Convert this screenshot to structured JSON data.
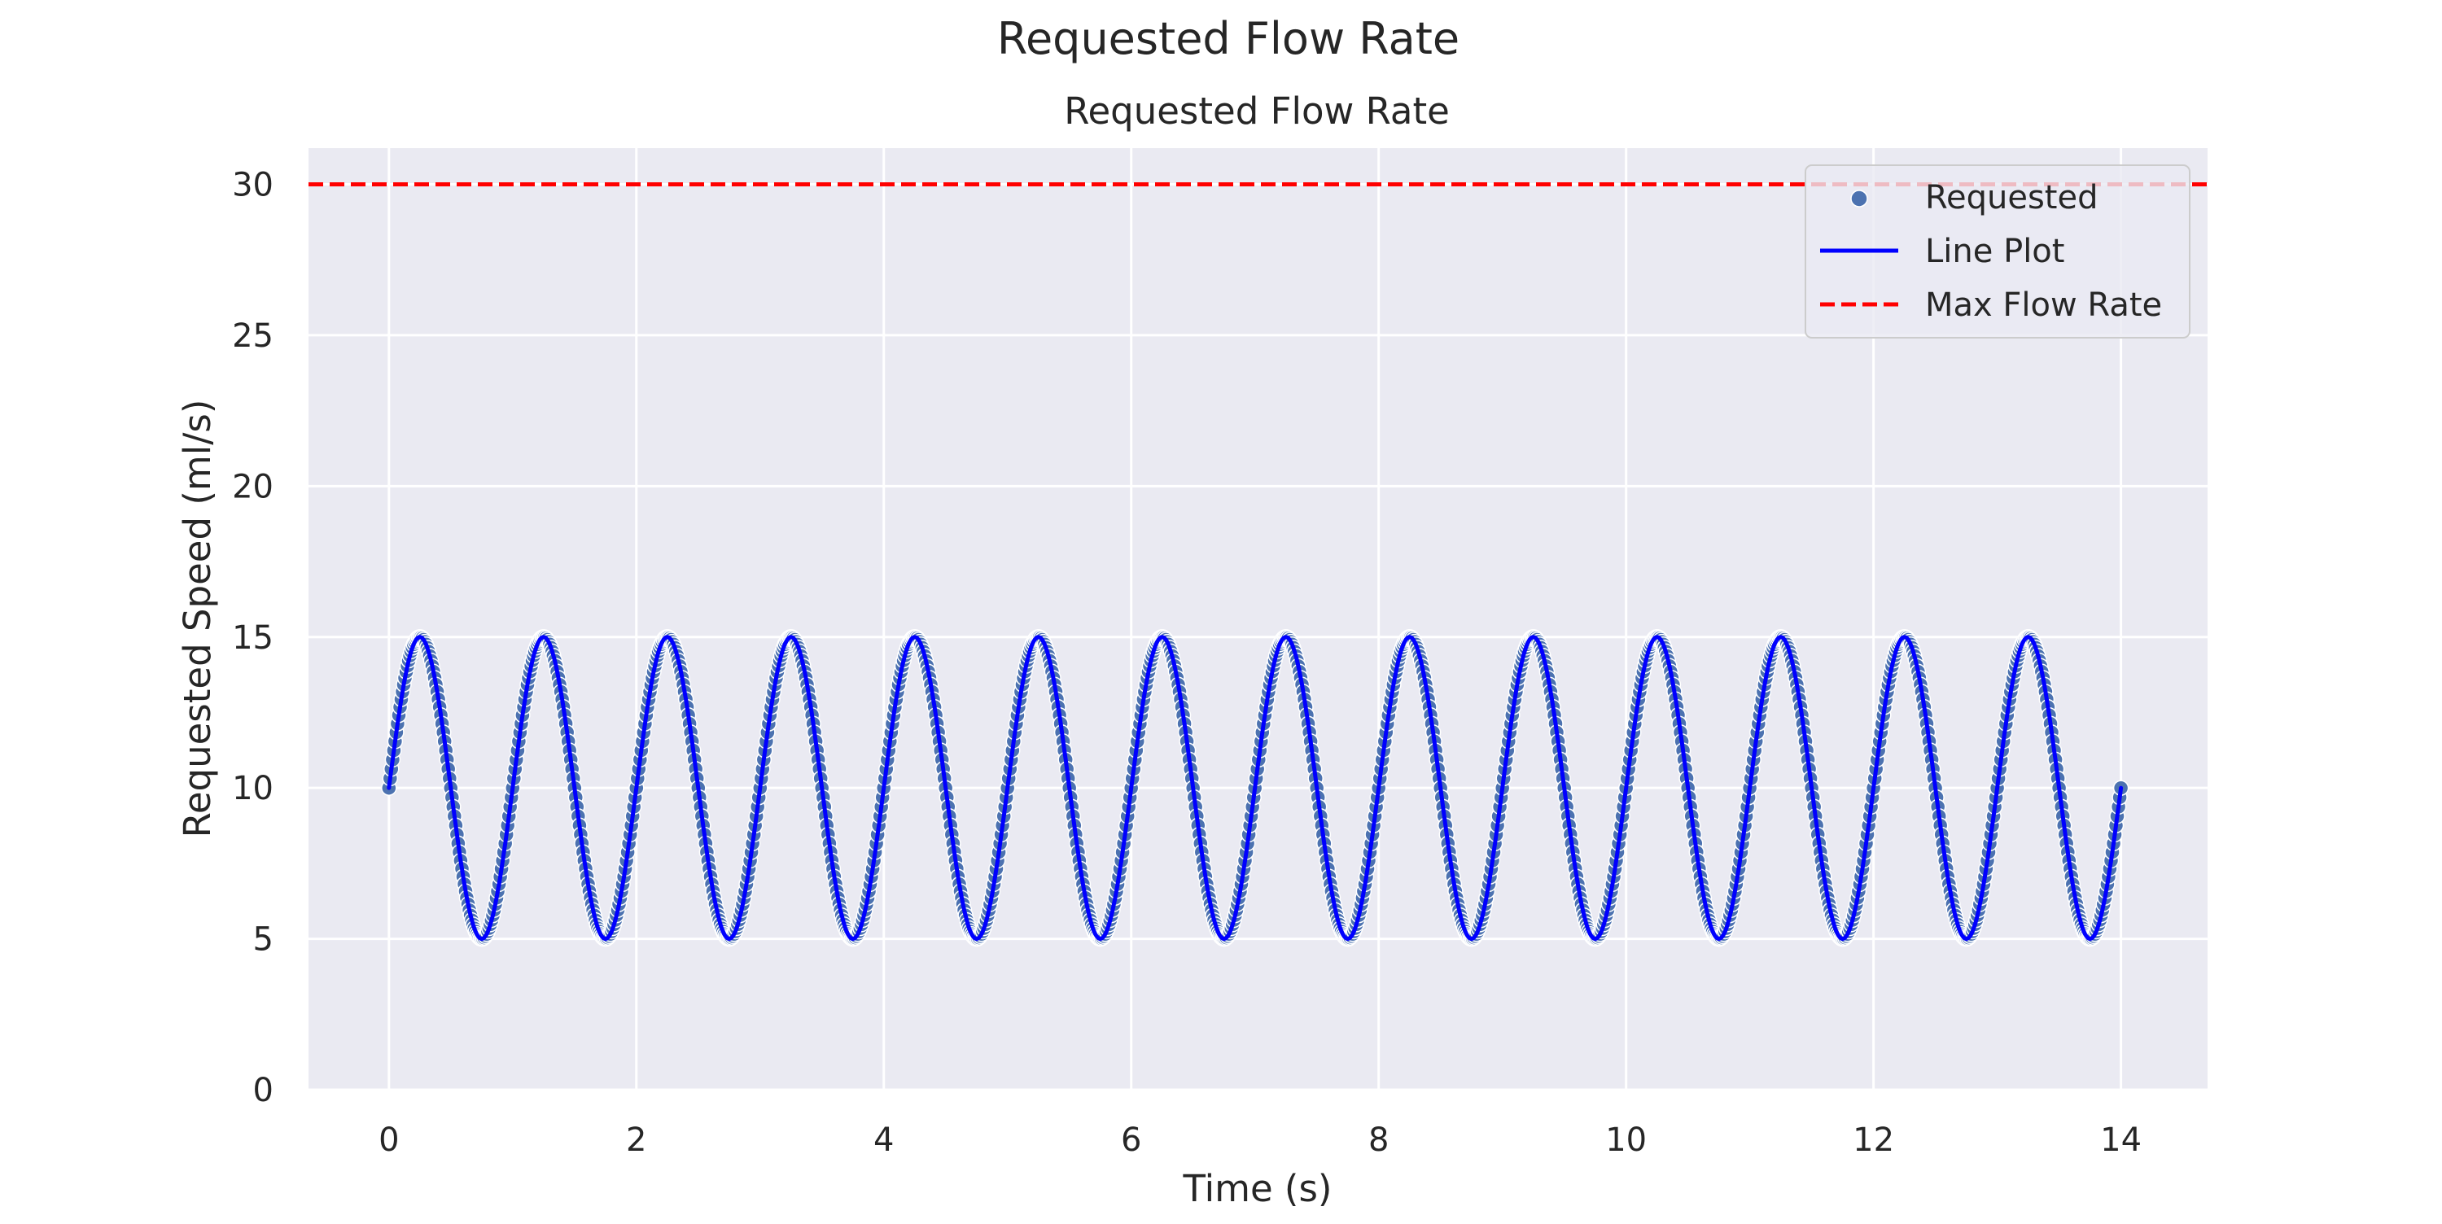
{
  "page": {
    "suptitle": "Requested Flow Rate"
  },
  "chart_data": {
    "type": "line",
    "title": "Requested Flow Rate",
    "xlabel": "Time (s)",
    "ylabel": "Requested Speed (ml/s)",
    "xlim": [
      -0.65,
      14.7
    ],
    "ylim": [
      0,
      31.2
    ],
    "xticks": [
      0,
      2,
      4,
      6,
      8,
      10,
      12,
      14
    ],
    "yticks": [
      0,
      5,
      10,
      15,
      20,
      25,
      30
    ],
    "xtick_labels": [
      "0",
      "2",
      "4",
      "6",
      "8",
      "10",
      "12",
      "14"
    ],
    "ytick_labels": [
      "0",
      "5",
      "10",
      "15",
      "20",
      "25",
      "30"
    ],
    "grid": true,
    "legend_position": "top-right",
    "signal": {
      "form": "sine",
      "offset": 10,
      "amplitude": 5,
      "period_s": 1,
      "t_start": 0,
      "t_end": 14,
      "min": 5,
      "max": 15
    },
    "series": [
      {
        "name": "Requested",
        "kind": "scatter",
        "color": "#4c72b0"
      },
      {
        "name": "Line Plot",
        "kind": "line",
        "color": "#0000ff"
      },
      {
        "name": "Max Flow Rate",
        "kind": "hline",
        "y": 30,
        "style": "dashed",
        "color": "#ff0000"
      }
    ],
    "colors": {
      "axes_background": "#eaeaf2",
      "grid": "#ffffff"
    }
  }
}
